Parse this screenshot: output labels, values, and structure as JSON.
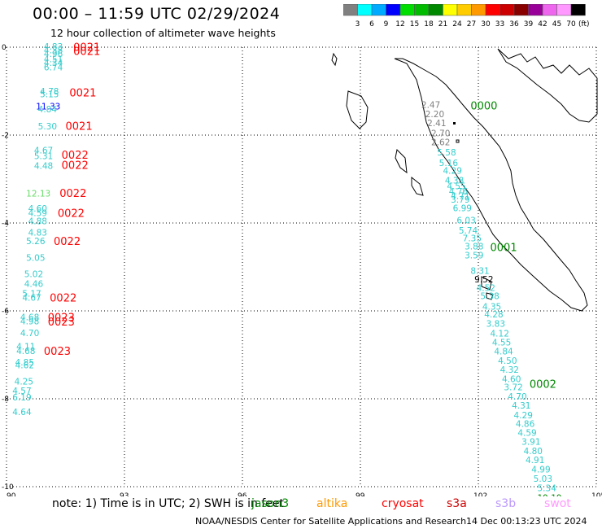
{
  "header": {
    "title": "00:00 – 11:59 UTC 02/29/2024",
    "subtitle": "12 hour collection of altimeter wave heights"
  },
  "colorbar": {
    "colors": [
      "#808080",
      "#00ffff",
      "#00aaff",
      "#0000ff",
      "#00dd00",
      "#00bb00",
      "#008800",
      "#ffff00",
      "#ffcc00",
      "#ff9900",
      "#ff0000",
      "#cc0000",
      "#880000",
      "#990099",
      "#ee66ee",
      "#ff99ff",
      "#000000"
    ],
    "labels": [
      "3",
      "6",
      "9",
      "12",
      "15",
      "18",
      "21",
      "24",
      "27",
      "30",
      "33",
      "36",
      "39",
      "42",
      "45",
      "70"
    ],
    "unit": "(ft)"
  },
  "axes": {
    "x_ticks": [
      "90",
      "93",
      "96",
      "99",
      "102",
      "105"
    ],
    "y_ticks": [
      "0",
      "-2",
      "-4",
      "-6",
      "-8",
      "-10"
    ]
  },
  "satellites": {
    "jason3": {
      "color": "#008800"
    },
    "cryosat": {
      "color": "#ff0000"
    }
  },
  "tracks": {
    "left": {
      "values": [
        {
          "t": "4.83",
          "lon": 90.95,
          "lat": -0.06,
          "c": "#33cccc"
        },
        {
          "t": "4.38",
          "lon": 90.95,
          "lat": -0.14,
          "c": "#33cccc"
        },
        {
          "t": "4.96",
          "lon": 90.95,
          "lat": -0.22,
          "c": "#33cccc"
        },
        {
          "t": "4.51",
          "lon": 90.95,
          "lat": -0.34,
          "c": "#33cccc"
        },
        {
          "t": "4.34",
          "lon": 90.95,
          "lat": -0.43,
          "c": "#33cccc"
        },
        {
          "t": "6.74",
          "lon": 90.95,
          "lat": -0.53,
          "c": "#33cccc"
        },
        {
          "t": "4.78",
          "lon": 90.85,
          "lat": -1.07,
          "c": "#33cccc"
        },
        {
          "t": "5.15",
          "lon": 90.85,
          "lat": -1.14,
          "c": "#33cccc"
        },
        {
          "t": "11.33",
          "lon": 90.75,
          "lat": -1.42,
          "c": "#0000ff"
        },
        {
          "t": "4.84",
          "lon": 90.8,
          "lat": -1.48,
          "c": "#33cccc"
        },
        {
          "t": "5.30",
          "lon": 90.8,
          "lat": -1.87,
          "c": "#33cccc"
        },
        {
          "t": "4.67",
          "lon": 90.7,
          "lat": -2.42,
          "c": "#33cccc"
        },
        {
          "t": "5.31",
          "lon": 90.7,
          "lat": -2.55,
          "c": "#33cccc"
        },
        {
          "t": "4.48",
          "lon": 90.7,
          "lat": -2.77,
          "c": "#33cccc"
        },
        {
          "t": "12.13",
          "lon": 90.5,
          "lat": -3.4,
          "c": "#66dd66"
        },
        {
          "t": "4.60",
          "lon": 90.55,
          "lat": -3.74,
          "c": "#33cccc"
        },
        {
          "t": "4.59",
          "lon": 90.55,
          "lat": -3.84,
          "c": "#33cccc"
        },
        {
          "t": "4.88",
          "lon": 90.55,
          "lat": -4.03,
          "c": "#33cccc"
        },
        {
          "t": "4.83",
          "lon": 90.55,
          "lat": -4.29,
          "c": "#33cccc"
        },
        {
          "t": "5.26",
          "lon": 90.5,
          "lat": -4.48,
          "c": "#33cccc"
        },
        {
          "t": "5.05",
          "lon": 90.5,
          "lat": -4.86,
          "c": "#33cccc"
        },
        {
          "t": "5.02",
          "lon": 90.45,
          "lat": -5.23,
          "c": "#33cccc"
        },
        {
          "t": "4.46",
          "lon": 90.45,
          "lat": -5.45,
          "c": "#33cccc"
        },
        {
          "t": "5.17",
          "lon": 90.4,
          "lat": -5.68,
          "c": "#33cccc"
        },
        {
          "t": "4.67",
          "lon": 90.4,
          "lat": -5.77,
          "c": "#33cccc"
        },
        {
          "t": "4.68",
          "lon": 90.35,
          "lat": -6.21,
          "c": "#33cccc"
        },
        {
          "t": "4.98",
          "lon": 90.35,
          "lat": -6.31,
          "c": "#33cccc"
        },
        {
          "t": "4.70",
          "lon": 90.35,
          "lat": -6.57,
          "c": "#33cccc"
        },
        {
          "t": "4.11",
          "lon": 90.25,
          "lat": -6.88,
          "c": "#33cccc"
        },
        {
          "t": "4.68",
          "lon": 90.25,
          "lat": -6.98,
          "c": "#33cccc"
        },
        {
          "t": "4.85",
          "lon": 90.22,
          "lat": -7.24,
          "c": "#33cccc"
        },
        {
          "t": "4.62",
          "lon": 90.22,
          "lat": -7.31,
          "c": "#33cccc"
        },
        {
          "t": "4.25",
          "lon": 90.2,
          "lat": -7.68,
          "c": "#33cccc"
        },
        {
          "t": "4.57",
          "lon": 90.15,
          "lat": -7.89,
          "c": "#33cccc"
        },
        {
          "t": "6.19",
          "lon": 90.15,
          "lat": -8.04,
          "c": "#33cccc"
        },
        {
          "t": "4.64",
          "lon": 90.15,
          "lat": -8.37,
          "c": "#33cccc"
        }
      ],
      "passes": [
        {
          "t": "0021",
          "lon": 91.7,
          "lat": -0.08
        },
        {
          "t": "0021",
          "lon": 91.7,
          "lat": -0.18
        },
        {
          "t": "0021",
          "lon": 91.6,
          "lat": -1.12
        },
        {
          "t": "0021",
          "lon": 91.5,
          "lat": -1.88
        },
        {
          "t": "0022",
          "lon": 91.4,
          "lat": -2.54
        },
        {
          "t": "0022",
          "lon": 91.4,
          "lat": -2.77
        },
        {
          "t": "0022",
          "lon": 91.35,
          "lat": -3.41
        },
        {
          "t": "0022",
          "lon": 91.3,
          "lat": -3.86
        },
        {
          "t": "0022",
          "lon": 91.2,
          "lat": -4.5
        },
        {
          "t": "0022",
          "lon": 91.1,
          "lat": -5.79
        },
        {
          "t": "0023",
          "lon": 91.05,
          "lat": -6.23
        },
        {
          "t": "0023",
          "lon": 91.05,
          "lat": -6.33
        },
        {
          "t": "0023",
          "lon": 90.95,
          "lat": -7.0
        }
      ]
    },
    "right": {
      "values": [
        {
          "t": "2.47",
          "lon": 100.55,
          "lat": -1.38,
          "c": "#808080"
        },
        {
          "t": "2.20",
          "lon": 100.65,
          "lat": -1.59,
          "c": "#808080"
        },
        {
          "t": "2.41",
          "lon": 100.7,
          "lat": -1.8,
          "c": "#808080"
        },
        {
          "t": "2.70",
          "lon": 100.8,
          "lat": -2.03,
          "c": "#808080"
        },
        {
          "t": "2.62",
          "lon": 100.8,
          "lat": -2.23,
          "c": "#808080"
        },
        {
          "t": "5.58",
          "lon": 100.95,
          "lat": -2.46,
          "c": "#33cccc"
        },
        {
          "t": "5.16",
          "lon": 101.0,
          "lat": -2.7,
          "c": "#33cccc"
        },
        {
          "t": "4.29",
          "lon": 101.1,
          "lat": -2.88,
          "c": "#33cccc"
        },
        {
          "t": "4.38",
          "lon": 101.15,
          "lat": -3.1,
          "c": "#33cccc"
        },
        {
          "t": "4.55",
          "lon": 101.2,
          "lat": -3.23,
          "c": "#33cccc"
        },
        {
          "t": "4.76",
          "lon": 101.25,
          "lat": -3.35,
          "c": "#33cccc"
        },
        {
          "t": "4.71",
          "lon": 101.3,
          "lat": -3.45,
          "c": "#33cccc"
        },
        {
          "t": "3.79",
          "lon": 101.3,
          "lat": -3.54,
          "c": "#33cccc"
        },
        {
          "t": "6.99",
          "lon": 101.35,
          "lat": -3.73,
          "c": "#33cccc"
        },
        {
          "t": "6.03",
          "lon": 101.45,
          "lat": -4.01,
          "c": "#33cccc"
        },
        {
          "t": "5.74",
          "lon": 101.5,
          "lat": -4.24,
          "c": "#33cccc"
        },
        {
          "t": "7.35",
          "lon": 101.6,
          "lat": -4.42,
          "c": "#33cccc"
        },
        {
          "t": "3.88",
          "lon": 101.65,
          "lat": -4.6,
          "c": "#33cccc"
        },
        {
          "t": "3.59",
          "lon": 101.65,
          "lat": -4.81,
          "c": "#33cccc"
        },
        {
          "t": "8.31",
          "lon": 101.8,
          "lat": -5.16,
          "c": "#33cccc"
        },
        {
          "t": "9.52",
          "lon": 101.9,
          "lat": -5.35,
          "c": "#000000"
        },
        {
          "t": "4.52",
          "lon": 101.95,
          "lat": -5.55,
          "c": "#33cccc"
        },
        {
          "t": "5.38",
          "lon": 102.05,
          "lat": -5.73,
          "c": "#33cccc"
        },
        {
          "t": "4.35",
          "lon": 102.1,
          "lat": -5.97,
          "c": "#33cccc"
        },
        {
          "t": "4.28",
          "lon": 102.15,
          "lat": -6.15,
          "c": "#33cccc"
        },
        {
          "t": "3.83",
          "lon": 102.2,
          "lat": -6.36,
          "c": "#33cccc"
        },
        {
          "t": "4.12",
          "lon": 102.3,
          "lat": -6.58,
          "c": "#33cccc"
        },
        {
          "t": "4.55",
          "lon": 102.35,
          "lat": -6.79,
          "c": "#33cccc"
        },
        {
          "t": "4.84",
          "lon": 102.4,
          "lat": -6.99,
          "c": "#33cccc"
        },
        {
          "t": "4.50",
          "lon": 102.5,
          "lat": -7.2,
          "c": "#33cccc"
        },
        {
          "t": "4.32",
          "lon": 102.55,
          "lat": -7.41,
          "c": "#33cccc"
        },
        {
          "t": "4.60",
          "lon": 102.6,
          "lat": -7.62,
          "c": "#33cccc"
        },
        {
          "t": "3.72",
          "lon": 102.65,
          "lat": -7.81,
          "c": "#33cccc"
        },
        {
          "t": "4.70",
          "lon": 102.75,
          "lat": -8.02,
          "c": "#33cccc"
        },
        {
          "t": "4.31",
          "lon": 102.85,
          "lat": -8.22,
          "c": "#33cccc"
        },
        {
          "t": "4.29",
          "lon": 102.9,
          "lat": -8.44,
          "c": "#33cccc"
        },
        {
          "t": "4.86",
          "lon": 102.95,
          "lat": -8.64,
          "c": "#33cccc"
        },
        {
          "t": "4.59",
          "lon": 103.0,
          "lat": -8.84,
          "c": "#33cccc"
        },
        {
          "t": "3.91",
          "lon": 103.1,
          "lat": -9.05,
          "c": "#33cccc"
        },
        {
          "t": "4.80",
          "lon": 103.15,
          "lat": -9.26,
          "c": "#33cccc"
        },
        {
          "t": "4.91",
          "lon": 103.2,
          "lat": -9.46,
          "c": "#33cccc"
        },
        {
          "t": "4.99",
          "lon": 103.35,
          "lat": -9.68,
          "c": "#33cccc"
        },
        {
          "t": "5.03",
          "lon": 103.4,
          "lat": -9.89,
          "c": "#33cccc"
        },
        {
          "t": "5.34",
          "lon": 103.5,
          "lat": -10.1,
          "c": "#33cccc"
        },
        {
          "t": "19.19",
          "lon": 103.5,
          "lat": -10.32,
          "c": "#008800"
        }
      ],
      "passes": [
        {
          "t": "0000",
          "lon": 101.8,
          "lat": -1.42
        },
        {
          "t": "0001",
          "lon": 102.3,
          "lat": -4.64
        },
        {
          "t": "0002",
          "lon": 103.3,
          "lat": -7.75
        }
      ]
    }
  },
  "note": {
    "text": "note: 1) Time is in UTC; 2) SWH is in feet",
    "legend": [
      {
        "name": "jason3",
        "color": "#008800"
      },
      {
        "name": "altika",
        "color": "#ff9900"
      },
      {
        "name": "cryosat",
        "color": "#ff0000"
      },
      {
        "name": "s3a",
        "color": "#cc0000"
      },
      {
        "name": "s3b",
        "color": "#bb99ff"
      },
      {
        "name": "swot",
        "color": "#ff99ff"
      }
    ]
  },
  "footer": {
    "credit": "NOAA/NESDIS Center for Satellite Applications and Research",
    "generated": "14 Dec 00:13:23 UTC 2024"
  }
}
